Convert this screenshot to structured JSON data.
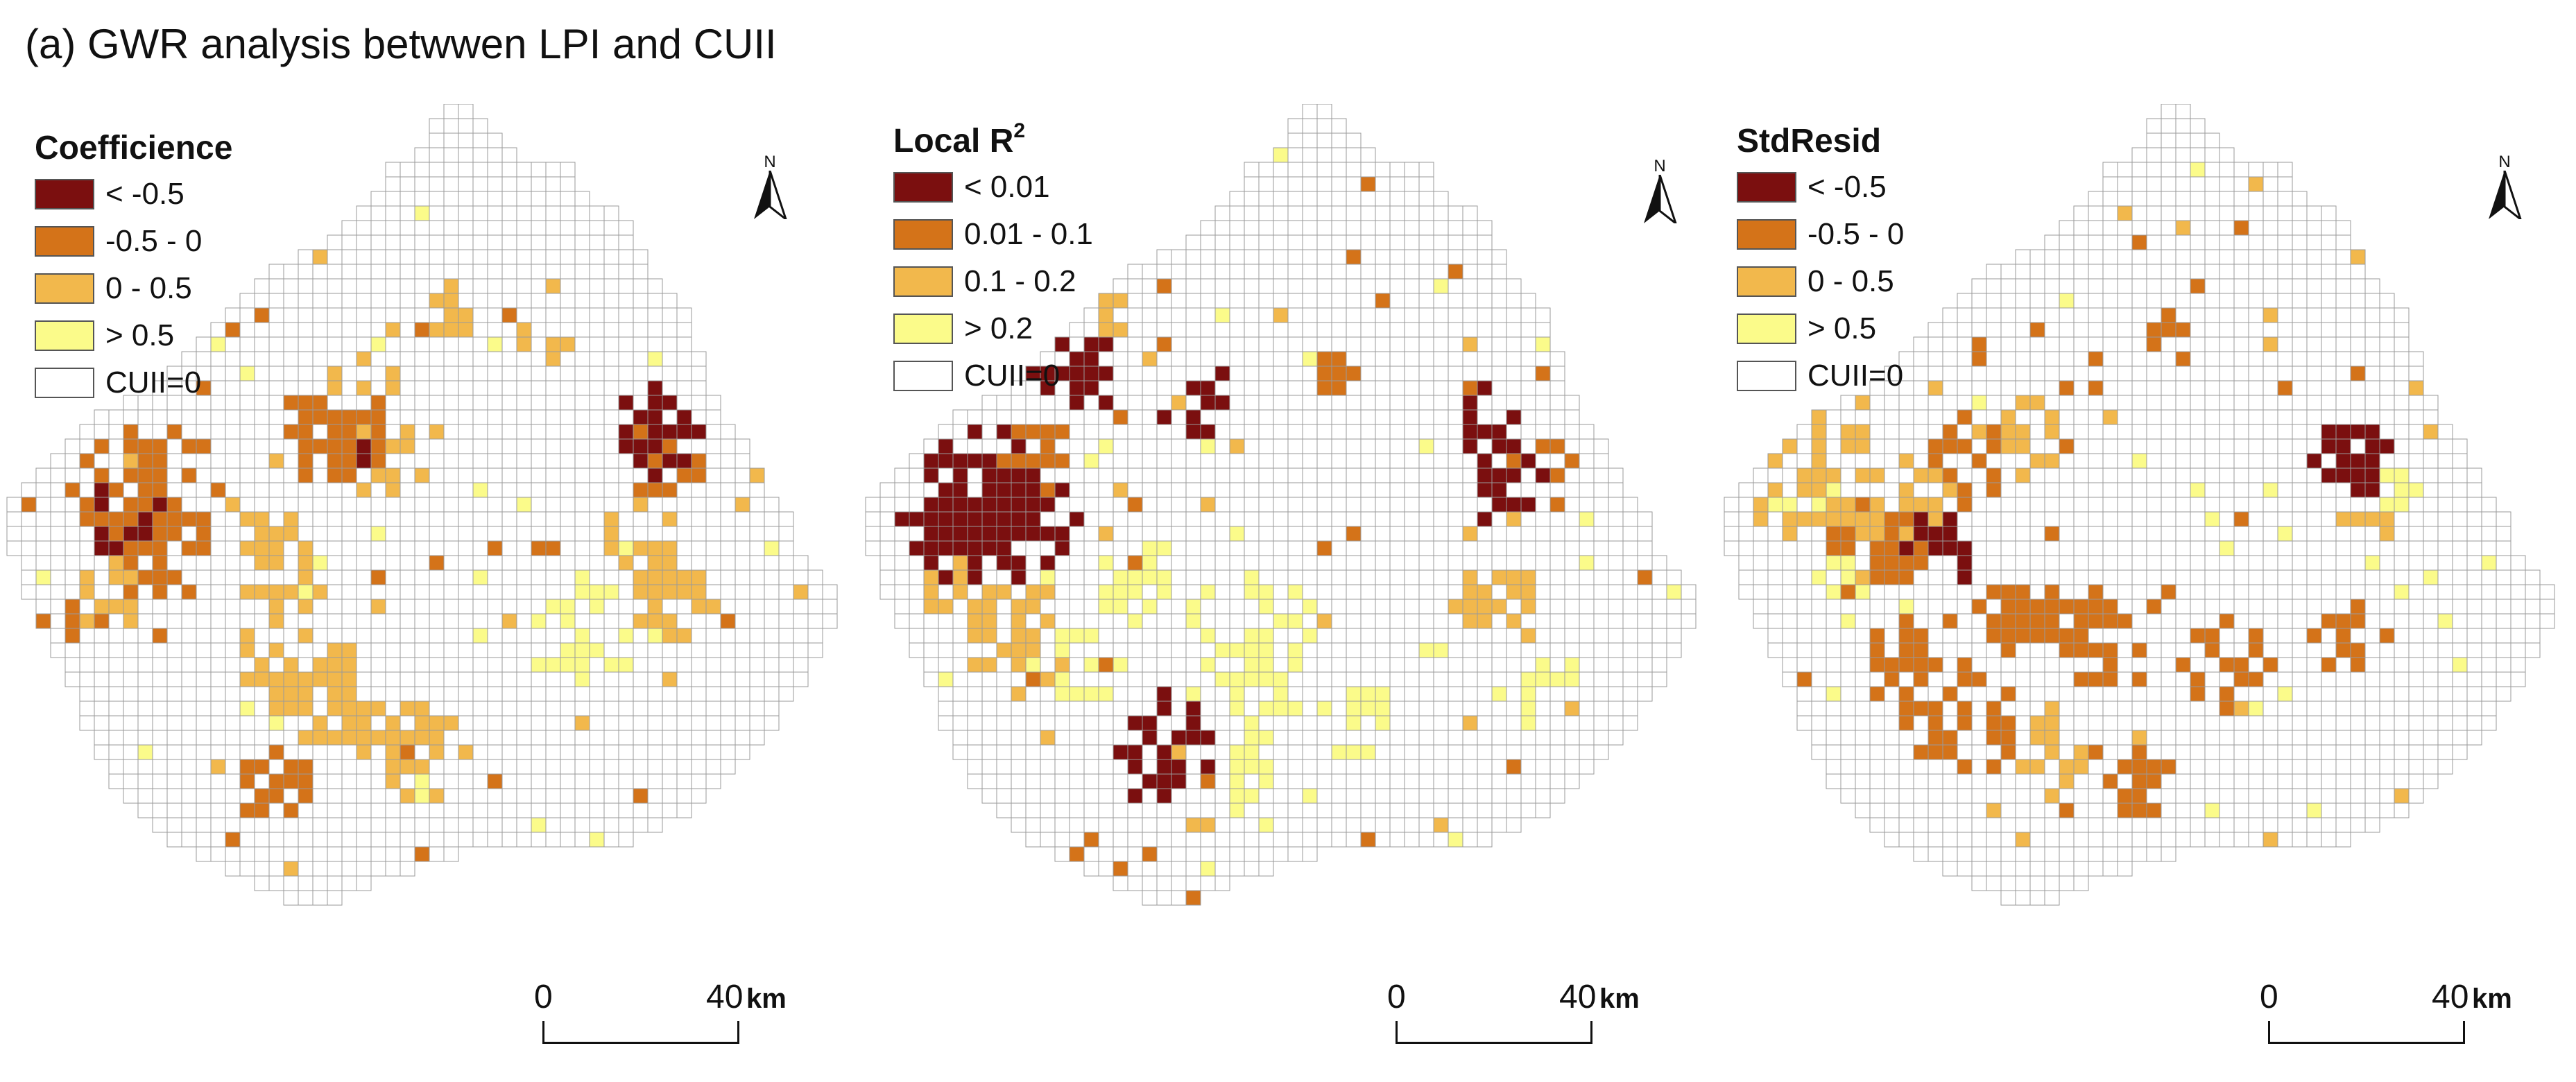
{
  "figure_title": "(a) GWR analysis betwwen LPI and CUII",
  "colors": {
    "class1": "#7b0f0f",
    "class2": "#d47319",
    "class3": "#f2b84c",
    "class4": "#fbfb8a",
    "class0": "#ffffff",
    "grid_line": "#9a9a9a"
  },
  "panels": [
    {
      "legend_title": "Coefficience",
      "legend_superscript": "",
      "legend": [
        {
          "label": "< -0.5",
          "color": "#7b0f0f"
        },
        {
          "label": "-0.5 - 0",
          "color": "#d47319"
        },
        {
          "label": "0 - 0.5",
          "color": "#f2b84c"
        },
        {
          "label": "> 0.5",
          "color": "#fbfb8a"
        },
        {
          "label": "CUII=0",
          "color": "#ffffff"
        }
      ],
      "north_label": "N",
      "north_icon": "north-arrow-icon",
      "scale_zero": "0",
      "scale_max": "40",
      "scale_unit": "km",
      "seed": 11
    },
    {
      "legend_title": "Local R",
      "legend_superscript": "2",
      "legend": [
        {
          "label": "< 0.01",
          "color": "#7b0f0f"
        },
        {
          "label": "0.01 - 0.1",
          "color": "#d47319"
        },
        {
          "label": "0.1 - 0.2",
          "color": "#f2b84c"
        },
        {
          "label": "> 0.2",
          "color": "#fbfb8a"
        },
        {
          "label": "CUII=0",
          "color": "#ffffff"
        }
      ],
      "north_label": "N",
      "north_icon": "north-arrow-icon",
      "scale_zero": "0",
      "scale_max": "40",
      "scale_unit": "km",
      "seed": 23
    },
    {
      "legend_title": "StdResid",
      "legend_superscript": "",
      "legend": [
        {
          "label": "< -0.5",
          "color": "#7b0f0f"
        },
        {
          "label": "-0.5 - 0",
          "color": "#d47319"
        },
        {
          "label": "0 - 0.5",
          "color": "#f2b84c"
        },
        {
          "label": "> 0.5",
          "color": "#fbfb8a"
        },
        {
          "label": "CUII=0",
          "color": "#ffffff"
        }
      ],
      "north_label": "N",
      "north_icon": "north-arrow-icon",
      "scale_zero": "0",
      "scale_max": "40",
      "scale_unit": "km",
      "seed": 37
    }
  ]
}
